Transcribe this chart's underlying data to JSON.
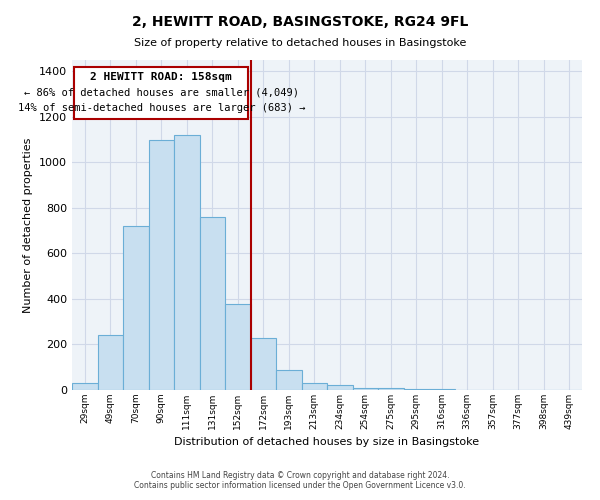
{
  "title_line1": "2, HEWITT ROAD, BASINGSTOKE, RG24 9FL",
  "title_line2": "Size of property relative to detached houses in Basingstoke",
  "xlabel": "Distribution of detached houses by size in Basingstoke",
  "ylabel": "Number of detached properties",
  "bar_labels": [
    "29sqm",
    "49sqm",
    "70sqm",
    "90sqm",
    "111sqm",
    "131sqm",
    "152sqm",
    "172sqm",
    "193sqm",
    "213sqm",
    "234sqm",
    "254sqm",
    "275sqm",
    "295sqm",
    "316sqm",
    "336sqm",
    "357sqm",
    "377sqm",
    "398sqm",
    "439sqm"
  ],
  "bar_heights": [
    30,
    240,
    720,
    1100,
    1120,
    760,
    380,
    230,
    90,
    30,
    20,
    10,
    10,
    5,
    3,
    0,
    0,
    0,
    0,
    0
  ],
  "bar_color": "#c8dff0",
  "bar_edge_color": "#6baed6",
  "ylim": [
    0,
    1450
  ],
  "yticks": [
    0,
    200,
    400,
    600,
    800,
    1000,
    1200,
    1400
  ],
  "property_label": "2 HEWITT ROAD: 158sqm",
  "annotation_line1": "← 86% of detached houses are smaller (4,049)",
  "annotation_line2": "14% of semi-detached houses are larger (683) →",
  "vline_color": "#aa0000",
  "box_edge_color": "#aa0000",
  "footer_line1": "Contains HM Land Registry data © Crown copyright and database right 2024.",
  "footer_line2": "Contains public sector information licensed under the Open Government Licence v3.0.",
  "background_color": "#ffffff",
  "grid_color": "#d0d8e8"
}
